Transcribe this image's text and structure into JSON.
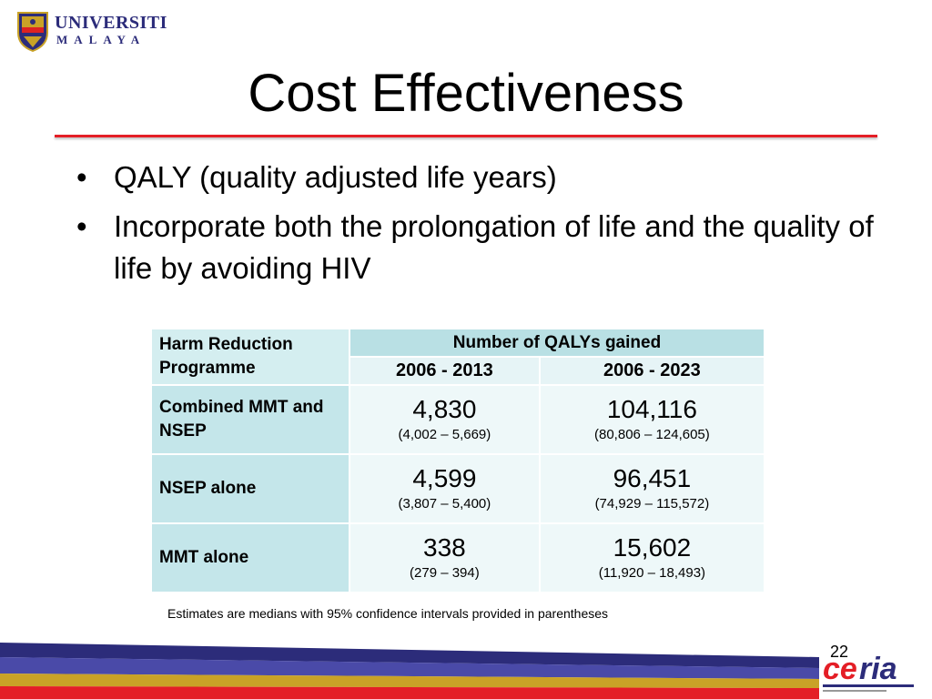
{
  "header": {
    "logo_line1": "UNIVERSITI",
    "logo_line2": "MALAYA"
  },
  "slide": {
    "title": "Cost Effectiveness",
    "bullets": [
      "QALY (quality adjusted life years)",
      "Incorporate both the prolongation of life and the quality of life by avoiding HIV"
    ]
  },
  "table": {
    "corner_header": "Harm Reduction Programme",
    "group_header": "Number of QALYs gained",
    "columns": [
      "2006 - 2013",
      "2006 - 2023"
    ],
    "rows": [
      {
        "label": "Combined MMT and NSEP",
        "cells": [
          {
            "value": "4,830",
            "ci": "(4,002 – 5,669)"
          },
          {
            "value": "104,116",
            "ci": "(80,806 – 124,605)"
          }
        ]
      },
      {
        "label": "NSEP alone",
        "cells": [
          {
            "value": "4,599",
            "ci": "(3,807 – 5,400)"
          },
          {
            "value": "96,451",
            "ci": "(74,929 – 115,572)"
          }
        ]
      },
      {
        "label": "MMT alone",
        "cells": [
          {
            "value": "338",
            "ci": "(279 – 394)"
          },
          {
            "value": "15,602",
            "ci": "(11,920 – 18,493)"
          }
        ]
      }
    ],
    "footnote": "Estimates are medians with 95% confidence intervals provided in parentheses"
  },
  "footer": {
    "page_number": "22",
    "partner_logo_text": "ceria"
  },
  "colors": {
    "accent_red": "#e41e26",
    "navy": "#2c2c7a",
    "table_header": "#b9e0e4"
  }
}
